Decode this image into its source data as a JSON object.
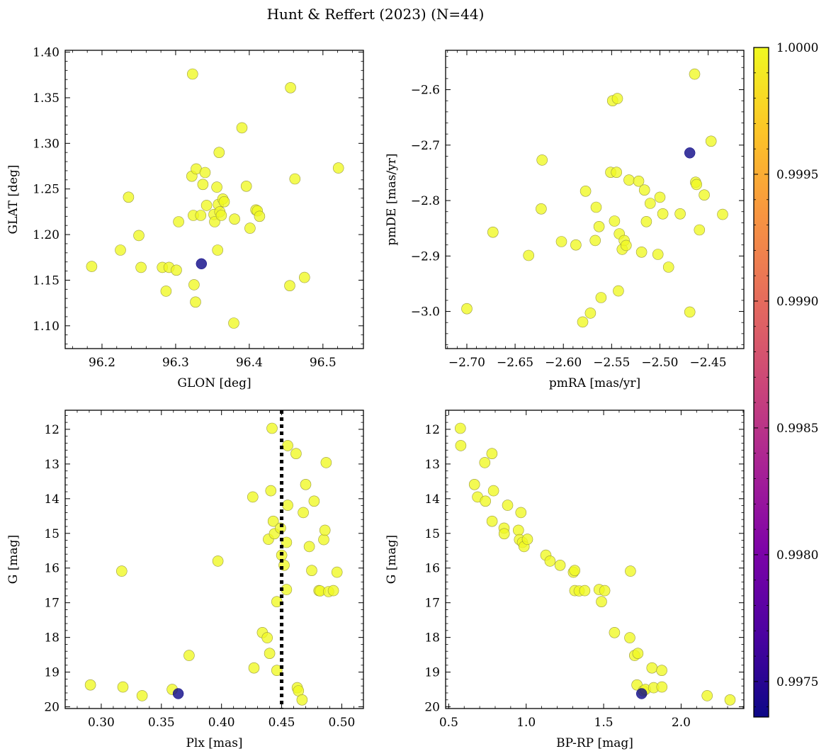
{
  "figure": {
    "title": "Hunt & Reffert (2023) (N=44)"
  },
  "colorbar": {
    "colormap": "plasma",
    "vmin": 0.99736,
    "vmax": 1.0,
    "ticks": [
      0.9975,
      0.998,
      0.9985,
      0.999,
      0.9995,
      1.0
    ],
    "tick_labels": [
      "0.9975",
      "0.9980",
      "0.9985",
      "0.9990",
      "0.9995",
      "1.0000"
    ]
  },
  "chart_data": [
    {
      "type": "scatter",
      "xlabel": "GLON [deg]",
      "ylabel": "GLAT [deg]",
      "xlim": [
        96.15,
        96.555
      ],
      "ylim": [
        1.075,
        1.402
      ],
      "xticks": [
        96.2,
        96.3,
        96.4,
        96.5
      ],
      "xtick_labels": [
        "96.2",
        "96.3",
        "96.4",
        "96.5"
      ],
      "yticks": [
        1.1,
        1.15,
        1.2,
        1.25,
        1.3,
        1.35,
        1.4
      ],
      "ytick_labels": [
        "1.10",
        "1.15",
        "1.20",
        "1.25",
        "1.30",
        "1.35",
        "1.40"
      ],
      "invert_y": false,
      "points": [
        {
          "x": 96.186,
          "y": 1.165
        },
        {
          "x": 96.225,
          "y": 1.183
        },
        {
          "x": 96.236,
          "y": 1.241
        },
        {
          "x": 96.25,
          "y": 1.199
        },
        {
          "x": 96.253,
          "y": 1.164
        },
        {
          "x": 96.282,
          "y": 1.164
        },
        {
          "x": 96.287,
          "y": 1.138
        },
        {
          "x": 96.291,
          "y": 1.164
        },
        {
          "x": 96.301,
          "y": 1.161
        },
        {
          "x": 96.304,
          "y": 1.214
        },
        {
          "x": 96.322,
          "y": 1.264
        },
        {
          "x": 96.323,
          "y": 1.376
        },
        {
          "x": 96.324,
          "y": 1.221
        },
        {
          "x": 96.325,
          "y": 1.145
        },
        {
          "x": 96.327,
          "y": 1.126
        },
        {
          "x": 96.328,
          "y": 1.272
        },
        {
          "x": 96.334,
          "y": 1.221
        },
        {
          "x": 96.337,
          "y": 1.255
        },
        {
          "x": 96.34,
          "y": 1.268
        },
        {
          "x": 96.342,
          "y": 1.232
        },
        {
          "x": 96.352,
          "y": 1.222
        },
        {
          "x": 96.353,
          "y": 1.214
        },
        {
          "x": 96.356,
          "y": 1.252
        },
        {
          "x": 96.357,
          "y": 1.183
        },
        {
          "x": 96.358,
          "y": 1.233
        },
        {
          "x": 96.359,
          "y": 1.29
        },
        {
          "x": 96.36,
          "y": 1.225
        },
        {
          "x": 96.362,
          "y": 1.221
        },
        {
          "x": 96.364,
          "y": 1.239
        },
        {
          "x": 96.38,
          "y": 1.217
        },
        {
          "x": 96.379,
          "y": 1.103
        },
        {
          "x": 96.39,
          "y": 1.317
        },
        {
          "x": 96.396,
          "y": 1.253
        },
        {
          "x": 96.401,
          "y": 1.207
        },
        {
          "x": 96.409,
          "y": 1.227
        },
        {
          "x": 96.411,
          "y": 1.226
        },
        {
          "x": 96.414,
          "y": 1.22
        },
        {
          "x": 96.455,
          "y": 1.144
        },
        {
          "x": 96.456,
          "y": 1.361
        },
        {
          "x": 96.462,
          "y": 1.261
        },
        {
          "x": 96.475,
          "y": 1.153
        },
        {
          "x": 96.521,
          "y": 1.273
        },
        {
          "x": 96.366,
          "y": 1.236
        },
        {
          "x": 96.335,
          "y": 1.168,
          "c": 0.99736
        }
      ]
    },
    {
      "type": "scatter",
      "xlabel": "pmRA [mas/yr]",
      "ylabel": "pmDE [mas/yr]",
      "xlim": [
        -2.722,
        -2.413
      ],
      "ylim": [
        -3.067,
        -2.529
      ],
      "xticks": [
        -2.7,
        -2.65,
        -2.6,
        -2.55,
        -2.5,
        -2.45
      ],
      "xtick_labels": [
        "−2.70",
        "−2.65",
        "−2.60",
        "−2.55",
        "−2.50",
        "−2.45"
      ],
      "yticks": [
        -3.0,
        -2.9,
        -2.8,
        -2.7,
        -2.6
      ],
      "ytick_labels": [
        "−3.0",
        "−2.9",
        "−2.8",
        "−2.7",
        "−2.6"
      ],
      "invert_y": false,
      "points": [
        {
          "x": -2.7,
          "y": -2.995
        },
        {
          "x": -2.673,
          "y": -2.857
        },
        {
          "x": -2.636,
          "y": -2.899
        },
        {
          "x": -2.622,
          "y": -2.727
        },
        {
          "x": -2.623,
          "y": -2.815
        },
        {
          "x": -2.602,
          "y": -2.874
        },
        {
          "x": -2.587,
          "y": -2.88
        },
        {
          "x": -2.58,
          "y": -3.019
        },
        {
          "x": -2.577,
          "y": -2.783
        },
        {
          "x": -2.572,
          "y": -3.003
        },
        {
          "x": -2.567,
          "y": -2.872
        },
        {
          "x": -2.566,
          "y": -2.812
        },
        {
          "x": -2.563,
          "y": -2.847
        },
        {
          "x": -2.561,
          "y": -2.975
        },
        {
          "x": -2.551,
          "y": -2.749
        },
        {
          "x": -2.549,
          "y": -2.62
        },
        {
          "x": -2.547,
          "y": -2.837
        },
        {
          "x": -2.545,
          "y": -2.749
        },
        {
          "x": -2.544,
          "y": -2.616
        },
        {
          "x": -2.543,
          "y": -2.963
        },
        {
          "x": -2.542,
          "y": -2.86
        },
        {
          "x": -2.539,
          "y": -2.888
        },
        {
          "x": -2.537,
          "y": -2.872
        },
        {
          "x": -2.535,
          "y": -2.881
        },
        {
          "x": -2.532,
          "y": -2.763
        },
        {
          "x": -2.522,
          "y": -2.765
        },
        {
          "x": -2.519,
          "y": -2.893
        },
        {
          "x": -2.516,
          "y": -2.781
        },
        {
          "x": -2.514,
          "y": -2.838
        },
        {
          "x": -2.51,
          "y": -2.805
        },
        {
          "x": -2.502,
          "y": -2.897
        },
        {
          "x": -2.5,
          "y": -2.794
        },
        {
          "x": -2.497,
          "y": -2.824
        },
        {
          "x": -2.491,
          "y": -2.92
        },
        {
          "x": -2.479,
          "y": -2.824
        },
        {
          "x": -2.469,
          "y": -3.001
        },
        {
          "x": -2.464,
          "y": -2.572
        },
        {
          "x": -2.463,
          "y": -2.767
        },
        {
          "x": -2.462,
          "y": -2.771
        },
        {
          "x": -2.459,
          "y": -2.853
        },
        {
          "x": -2.454,
          "y": -2.79
        },
        {
          "x": -2.447,
          "y": -2.693
        },
        {
          "x": -2.435,
          "y": -2.825
        },
        {
          "x": -2.469,
          "y": -2.714,
          "c": 0.99736
        }
      ]
    },
    {
      "type": "scatter",
      "xlabel": "Plx [mas]",
      "ylabel": "G [mag]",
      "xlim": [
        0.27,
        0.518
      ],
      "ylim": [
        11.45,
        20.05
      ],
      "xticks": [
        0.3,
        0.35,
        0.4,
        0.45,
        0.5
      ],
      "xtick_labels": [
        "0.30",
        "0.35",
        "0.40",
        "0.45",
        "0.50"
      ],
      "yticks": [
        12,
        13,
        14,
        15,
        16,
        17,
        18,
        19,
        20
      ],
      "ytick_labels": [
        "12",
        "13",
        "14",
        "15",
        "16",
        "17",
        "18",
        "19",
        "20"
      ],
      "invert_y": true,
      "vline": 0.45,
      "points": [
        {
          "x": 0.291,
          "y": 19.37
        },
        {
          "x": 0.317,
          "y": 16.09
        },
        {
          "x": 0.318,
          "y": 19.43
        },
        {
          "x": 0.334,
          "y": 19.68
        },
        {
          "x": 0.359,
          "y": 19.5
        },
        {
          "x": 0.373,
          "y": 18.52
        },
        {
          "x": 0.397,
          "y": 15.8
        },
        {
          "x": 0.426,
          "y": 13.95
        },
        {
          "x": 0.427,
          "y": 18.88
        },
        {
          "x": 0.434,
          "y": 17.86
        },
        {
          "x": 0.438,
          "y": 18.01
        },
        {
          "x": 0.439,
          "y": 15.17
        },
        {
          "x": 0.44,
          "y": 18.46
        },
        {
          "x": 0.441,
          "y": 13.77
        },
        {
          "x": 0.442,
          "y": 11.97
        },
        {
          "x": 0.443,
          "y": 14.65
        },
        {
          "x": 0.444,
          "y": 15.01
        },
        {
          "x": 0.446,
          "y": 16.97
        },
        {
          "x": 0.446,
          "y": 18.95
        },
        {
          "x": 0.449,
          "y": 14.85
        },
        {
          "x": 0.45,
          "y": 15.63
        },
        {
          "x": 0.452,
          "y": 15.92
        },
        {
          "x": 0.454,
          "y": 16.62
        },
        {
          "x": 0.454,
          "y": 15.26
        },
        {
          "x": 0.455,
          "y": 12.47
        },
        {
          "x": 0.455,
          "y": 14.19
        },
        {
          "x": 0.462,
          "y": 12.7
        },
        {
          "x": 0.463,
          "y": 19.45
        },
        {
          "x": 0.464,
          "y": 19.54
        },
        {
          "x": 0.467,
          "y": 19.8
        },
        {
          "x": 0.468,
          "y": 14.4
        },
        {
          "x": 0.47,
          "y": 13.59
        },
        {
          "x": 0.473,
          "y": 15.38
        },
        {
          "x": 0.475,
          "y": 16.07
        },
        {
          "x": 0.477,
          "y": 14.07
        },
        {
          "x": 0.481,
          "y": 16.65
        },
        {
          "x": 0.482,
          "y": 16.66
        },
        {
          "x": 0.485,
          "y": 15.18
        },
        {
          "x": 0.486,
          "y": 14.91
        },
        {
          "x": 0.487,
          "y": 12.96
        },
        {
          "x": 0.489,
          "y": 16.68
        },
        {
          "x": 0.493,
          "y": 16.65
        },
        {
          "x": 0.496,
          "y": 16.12
        },
        {
          "x": 0.364,
          "y": 19.62,
          "c": 0.99736
        }
      ]
    },
    {
      "type": "scatter",
      "xlabel": "BP-RP [mag]",
      "ylabel": "G [mag]",
      "xlim": [
        0.48,
        2.405
      ],
      "ylim": [
        11.45,
        20.05
      ],
      "xticks": [
        0.5,
        1.0,
        1.5,
        2.0
      ],
      "xtick_labels": [
        "0.5",
        "1.0",
        "1.5",
        "2.0"
      ],
      "yticks": [
        12,
        13,
        14,
        15,
        16,
        17,
        18,
        19,
        20
      ],
      "ytick_labels": [
        "12",
        "13",
        "14",
        "15",
        "16",
        "17",
        "18",
        "19",
        "20"
      ],
      "invert_y": true,
      "points": [
        {
          "x": 0.575,
          "y": 11.97
        },
        {
          "x": 0.578,
          "y": 12.47
        },
        {
          "x": 0.666,
          "y": 13.59
        },
        {
          "x": 0.686,
          "y": 13.95
        },
        {
          "x": 0.733,
          "y": 12.96
        },
        {
          "x": 0.737,
          "y": 14.07
        },
        {
          "x": 0.779,
          "y": 12.7
        },
        {
          "x": 0.78,
          "y": 14.65
        },
        {
          "x": 0.789,
          "y": 13.77
        },
        {
          "x": 0.857,
          "y": 14.85
        },
        {
          "x": 0.858,
          "y": 15.01
        },
        {
          "x": 0.88,
          "y": 14.19
        },
        {
          "x": 0.95,
          "y": 14.91
        },
        {
          "x": 0.957,
          "y": 15.18
        },
        {
          "x": 0.966,
          "y": 14.4
        },
        {
          "x": 0.976,
          "y": 15.26
        },
        {
          "x": 0.986,
          "y": 15.38
        },
        {
          "x": 1.008,
          "y": 15.17
        },
        {
          "x": 1.127,
          "y": 15.63
        },
        {
          "x": 1.154,
          "y": 15.8
        },
        {
          "x": 1.219,
          "y": 15.92
        },
        {
          "x": 1.305,
          "y": 16.12
        },
        {
          "x": 1.313,
          "y": 16.07
        },
        {
          "x": 1.314,
          "y": 16.65
        },
        {
          "x": 1.342,
          "y": 16.66
        },
        {
          "x": 1.378,
          "y": 16.65
        },
        {
          "x": 1.471,
          "y": 16.62
        },
        {
          "x": 1.486,
          "y": 16.97
        },
        {
          "x": 1.507,
          "y": 16.65
        },
        {
          "x": 1.57,
          "y": 17.86
        },
        {
          "x": 1.669,
          "y": 18.01
        },
        {
          "x": 1.673,
          "y": 16.09
        },
        {
          "x": 1.7,
          "y": 18.52
        },
        {
          "x": 1.721,
          "y": 18.46
        },
        {
          "x": 1.715,
          "y": 19.37
        },
        {
          "x": 1.756,
          "y": 19.54
        },
        {
          "x": 1.769,
          "y": 19.5
        },
        {
          "x": 1.812,
          "y": 18.88
        },
        {
          "x": 1.823,
          "y": 19.45
        },
        {
          "x": 1.875,
          "y": 18.95
        },
        {
          "x": 1.876,
          "y": 19.43
        },
        {
          "x": 2.168,
          "y": 19.68
        },
        {
          "x": 2.316,
          "y": 19.8
        },
        {
          "x": 1.745,
          "y": 19.62,
          "c": 0.99736
        }
      ]
    }
  ]
}
